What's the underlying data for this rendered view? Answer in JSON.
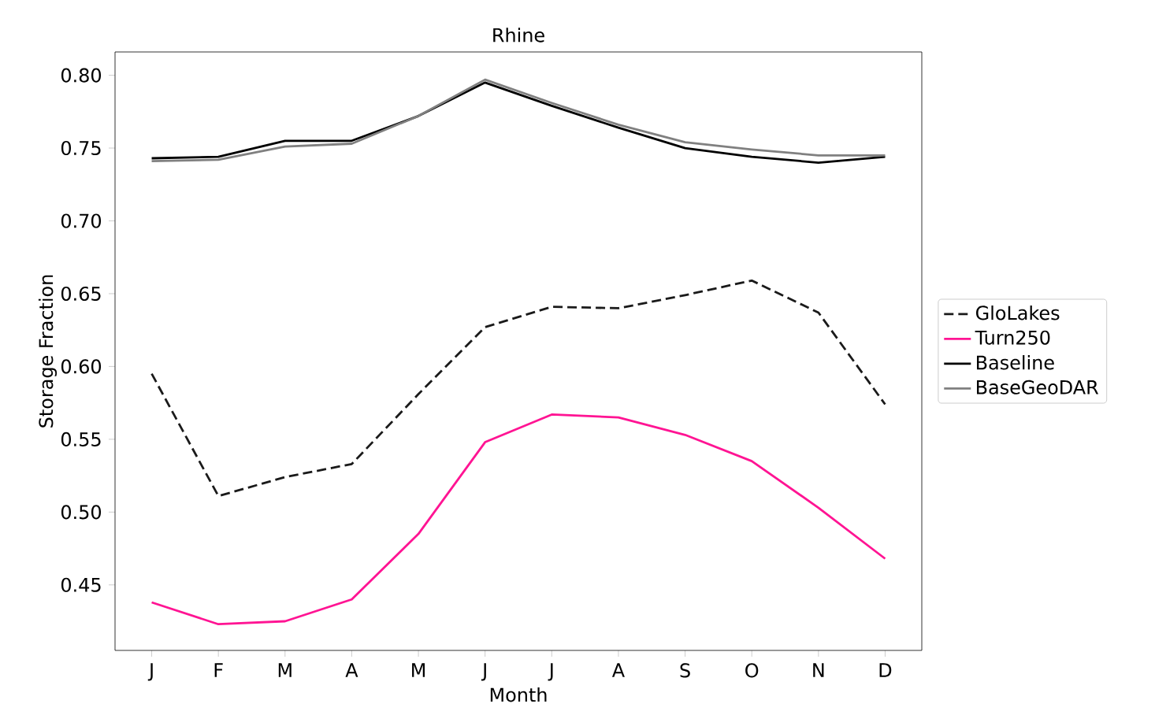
{
  "chart_data": {
    "type": "line",
    "title": "Rhine",
    "xlabel": "Month",
    "ylabel": "Storage Fraction",
    "categories": [
      "J",
      "F",
      "M",
      "A",
      "M",
      "J",
      "J",
      "A",
      "S",
      "O",
      "N",
      "D"
    ],
    "ylim": [
      0.405,
      0.816
    ],
    "yticks": [
      0.45,
      {
        "value": 0.5,
        "label": "0.50"
      },
      0.55,
      {
        "value": 0.6,
        "label": "0.60"
      },
      0.65,
      {
        "value": 0.7,
        "label": "0.70"
      },
      0.75,
      {
        "value": 0.8,
        "label": "0.80"
      }
    ],
    "legend": "right",
    "grid": false,
    "marker": "none",
    "series": [
      {
        "name": "GloLakes",
        "color": "#1a1a1a",
        "line_style": "dashed",
        "values": [
          0.595,
          0.511,
          0.524,
          0.533,
          0.581,
          0.627,
          0.641,
          0.64,
          0.649,
          0.659,
          0.637,
          0.574
        ]
      },
      {
        "name": "Turn250",
        "color": "#ff1493",
        "line_style": "solid",
        "values": [
          0.438,
          0.423,
          0.425,
          0.44,
          0.485,
          0.548,
          0.567,
          0.565,
          0.553,
          0.535,
          0.503,
          0.468
        ]
      },
      {
        "name": "Baseline",
        "color": "#000000",
        "line_style": "solid",
        "values": [
          0.743,
          0.744,
          0.755,
          0.755,
          0.772,
          0.795,
          0.779,
          0.764,
          0.75,
          0.744,
          0.74,
          0.744
        ]
      },
      {
        "name": "BaseGeoDAR",
        "color": "#808080",
        "line_style": "solid",
        "values": [
          0.741,
          0.742,
          0.751,
          0.753,
          0.772,
          0.797,
          0.781,
          0.766,
          0.754,
          0.749,
          0.745,
          0.745
        ]
      }
    ]
  }
}
